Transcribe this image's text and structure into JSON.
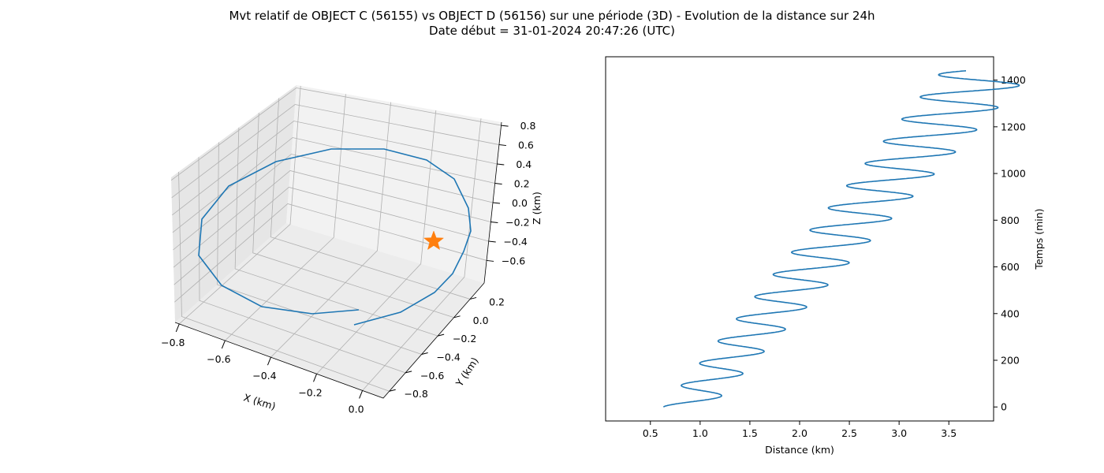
{
  "figure": {
    "title_line1": "Mvt relatif de OBJECT C (56155) vs OBJECT D (56156) sur une période (3D) - Evolution de la distance sur 24h",
    "title_line2": "Date début = 31-01-2024 20:47:26 (UTC)"
  },
  "colors": {
    "series": "#1f77b4",
    "star": "#ff7f0e",
    "pane": "#f2f2f2",
    "grid": "#b0b0b0"
  },
  "chart_data": [
    {
      "type": "line3d",
      "xlabel": "X (km)",
      "ylabel": "Y (km)",
      "zlabel": "Z (km)",
      "xticks": [
        "−0.8",
        "−0.6",
        "−0.4",
        "−0.2",
        "0.0"
      ],
      "yticks": [
        "−0.8",
        "−0.6",
        "−0.4",
        "−0.2",
        "0.0",
        "0.2"
      ],
      "zticks": [
        "−0.6",
        "−0.4",
        "−0.2",
        "0.0",
        "0.2",
        "0.4",
        "0.6",
        "0.8"
      ],
      "grid": true,
      "marker": {
        "symbol": "star",
        "label": "OBJECT D (56156)"
      }
    },
    {
      "type": "line",
      "xlabel": "Distance (km)",
      "ylabel": "Temps (min)",
      "xlim": [
        0.05,
        3.95
      ],
      "ylim": [
        -60,
        1500
      ],
      "xticks": [
        0.5,
        1.0,
        1.5,
        2.0,
        2.5,
        3.0,
        3.5
      ],
      "yticks": [
        0,
        200,
        400,
        600,
        800,
        1000,
        1200,
        1400
      ],
      "yaxis_position": "right",
      "series": [
        {
          "values_description": "x from 0.65 to 3.77 km with oscillations, y time 0 to 1440 min",
          "x_start": 0.65,
          "x_end": 3.77,
          "t_start": 0,
          "t_end": 1440,
          "period_min": 95,
          "amplitude_km": [
            0.24,
            0.46
          ]
        }
      ]
    }
  ]
}
